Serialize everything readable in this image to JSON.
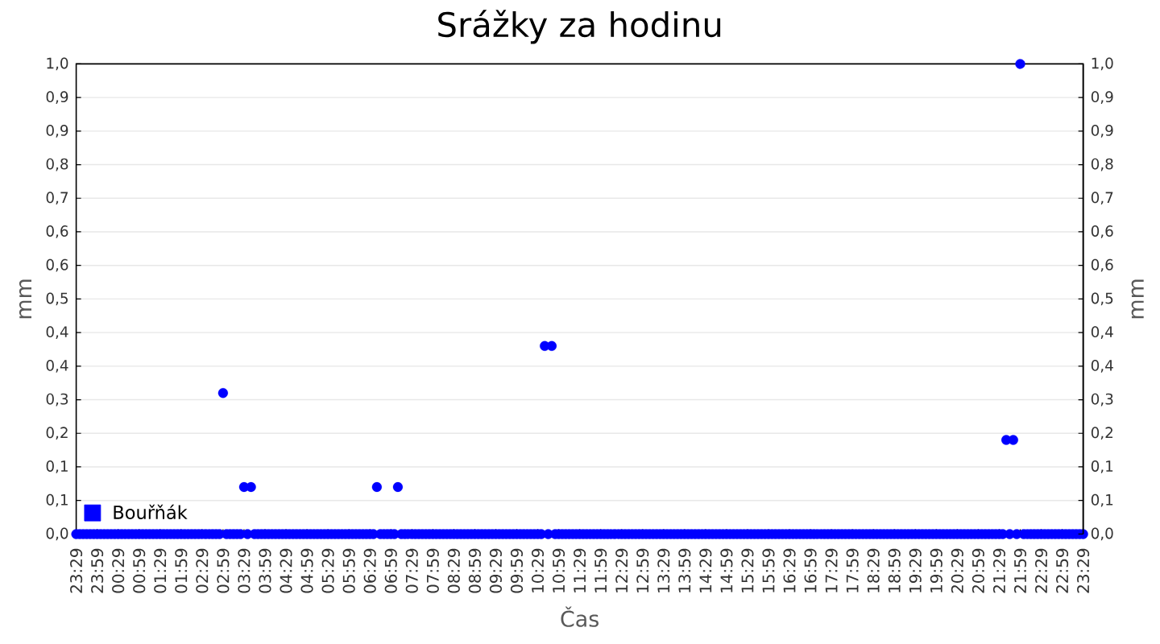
{
  "chart_data": {
    "type": "scatter",
    "title": "Srážky za hodinu",
    "xlabel": "Čas",
    "ylabel": "mm",
    "y2label": "mm",
    "categories": [
      "23:29",
      null,
      null,
      null,
      null,
      null,
      "23:59",
      null,
      null,
      null,
      null,
      null,
      "00:29",
      null,
      null,
      null,
      null,
      null,
      "00:59",
      null,
      null,
      null,
      null,
      null,
      "01:29",
      null,
      null,
      null,
      null,
      null,
      "01:59",
      null,
      null,
      null,
      null,
      null,
      "02:29",
      null,
      null,
      null,
      null,
      null,
      "02:59",
      null,
      null,
      null,
      null,
      null,
      "03:29",
      null,
      null,
      null,
      null,
      null,
      "03:59",
      null,
      null,
      null,
      null,
      null,
      "04:29",
      null,
      null,
      null,
      null,
      null,
      "04:59",
      null,
      null,
      null,
      null,
      null,
      "05:29",
      null,
      null,
      null,
      null,
      null,
      "05:59",
      null,
      null,
      null,
      null,
      null,
      "06:29",
      null,
      null,
      null,
      null,
      null,
      "06:59",
      null,
      null,
      null,
      null,
      null,
      "07:29",
      null,
      null,
      null,
      null,
      null,
      "07:59",
      null,
      null,
      null,
      null,
      null,
      "08:29",
      null,
      null,
      null,
      null,
      null,
      "08:59",
      null,
      null,
      null,
      null,
      null,
      "09:29",
      null,
      null,
      null,
      null,
      null,
      "09:59",
      null,
      null,
      null,
      null,
      null,
      "10:29",
      null,
      null,
      null,
      null,
      null,
      "10:59",
      null,
      null,
      null,
      null,
      null,
      "11:29",
      null,
      null,
      null,
      null,
      null,
      "11:59",
      null,
      null,
      null,
      null,
      null,
      "12:29",
      null,
      null,
      null,
      null,
      null,
      "12:59",
      null,
      null,
      null,
      null,
      null,
      "13:29",
      null,
      null,
      null,
      null,
      null,
      "13:59",
      null,
      null,
      null,
      null,
      null,
      "14:29",
      null,
      null,
      null,
      null,
      null,
      "14:59",
      null,
      null,
      null,
      null,
      null,
      "15:29",
      null,
      null,
      null,
      null,
      null,
      "15:59",
      null,
      null,
      null,
      null,
      null,
      "16:29",
      null,
      null,
      null,
      null,
      null,
      "16:59",
      null,
      null,
      null,
      null,
      null,
      "17:29",
      null,
      null,
      null,
      null,
      null,
      "17:59",
      null,
      null,
      null,
      null,
      null,
      "18:29",
      null,
      null,
      null,
      null,
      null,
      "18:59",
      null,
      null,
      null,
      null,
      null,
      "19:29",
      null,
      null,
      null,
      null,
      null,
      "19:59",
      null,
      null,
      null,
      null,
      null,
      "20:29",
      null,
      null,
      null,
      null,
      null,
      "20:59",
      null,
      null,
      null,
      null,
      null,
      "21:29",
      null,
      null,
      null,
      null,
      null,
      "21:59",
      null,
      null,
      null,
      null,
      null,
      "22:29",
      null,
      null,
      null,
      null,
      null,
      "22:59",
      null,
      null,
      null,
      null,
      null,
      "23:29"
    ],
    "series": [
      {
        "name": "Bouřňák",
        "color": "#0000ff",
        "values": [
          0,
          0,
          0,
          0,
          0,
          0,
          0,
          0,
          0,
          0,
          0,
          0,
          0,
          0,
          0,
          0,
          0,
          0,
          0,
          0,
          0,
          0,
          0,
          0,
          0,
          0,
          0,
          0,
          0,
          0,
          0,
          0,
          0,
          0,
          0,
          0,
          0,
          0,
          0,
          0,
          0,
          0,
          0.3,
          0,
          0,
          0,
          0,
          0,
          0.1,
          0,
          0.1,
          0,
          0,
          0,
          0,
          0,
          0,
          0,
          0,
          0,
          0,
          0,
          0,
          0,
          0,
          0,
          0,
          0,
          0,
          0,
          0,
          0,
          0,
          0,
          0,
          0,
          0,
          0,
          0,
          0,
          0,
          0,
          0,
          0,
          0,
          0,
          0.1,
          0,
          0,
          0,
          0,
          0,
          0.1,
          0,
          0,
          0,
          0,
          0,
          0,
          0,
          0,
          0,
          0,
          0,
          0,
          0,
          0,
          0,
          0,
          0,
          0,
          0,
          0,
          0,
          0,
          0,
          0,
          0,
          0,
          0,
          0,
          0,
          0,
          0,
          0,
          0,
          0,
          0,
          0,
          0,
          0,
          0,
          0,
          0,
          0.4,
          0,
          0.4,
          0,
          0,
          0,
          0,
          0,
          0,
          0,
          0,
          0,
          0,
          0,
          0,
          0,
          0,
          0,
          0,
          0,
          0,
          0,
          0,
          0,
          0,
          0,
          0,
          0,
          0,
          0,
          0,
          0,
          0,
          0,
          0,
          0,
          0,
          0,
          0,
          0,
          0,
          0,
          0,
          0,
          0,
          0,
          0,
          0,
          0,
          0,
          0,
          0,
          0,
          0,
          0,
          0,
          0,
          0,
          0,
          0,
          0,
          0,
          0,
          0,
          0,
          0,
          0,
          0,
          0,
          0,
          0,
          0,
          0,
          0,
          0,
          0,
          0,
          0,
          0,
          0,
          0,
          0,
          0,
          0,
          0,
          0,
          0,
          0,
          0,
          0,
          0,
          0,
          0,
          0,
          0,
          0,
          0,
          0,
          0,
          0,
          0,
          0,
          0,
          0,
          0,
          0,
          0,
          0,
          0,
          0,
          0,
          0,
          0,
          0,
          0,
          0,
          0,
          0,
          0,
          0,
          0,
          0,
          0,
          0,
          0,
          0,
          0,
          0,
          0,
          0,
          0,
          0,
          0.2,
          0,
          0.2,
          0,
          1,
          0,
          0,
          0,
          0,
          0,
          0,
          0,
          0,
          0,
          0,
          0,
          0,
          0,
          0,
          0,
          0,
          0,
          0
        ]
      }
    ],
    "ylim": [
      0,
      1
    ],
    "yticks": [
      {
        "value": 0,
        "label": "0,0"
      },
      {
        "value": 0.0714,
        "label": "0,1"
      },
      {
        "value": 0.1429,
        "label": "0,1"
      },
      {
        "value": 0.2143,
        "label": "0,2"
      },
      {
        "value": 0.2857,
        "label": "0,3"
      },
      {
        "value": 0.3571,
        "label": "0,4"
      },
      {
        "value": 0.4286,
        "label": "0,4"
      },
      {
        "value": 0.5,
        "label": "0,5"
      },
      {
        "value": 0.5714,
        "label": "0,6"
      },
      {
        "value": 0.6429,
        "label": "0,6"
      },
      {
        "value": 0.7143,
        "label": "0,7"
      },
      {
        "value": 0.7857,
        "label": "0,8"
      },
      {
        "value": 0.8571,
        "label": "0,9"
      },
      {
        "value": 0.9286,
        "label": "0,9"
      },
      {
        "value": 1,
        "label": "1,0"
      }
    ],
    "y2lim": [
      0,
      1
    ],
    "y2ticks": [
      {
        "value": 0,
        "label": "0,0"
      },
      {
        "value": 0.0714,
        "label": "0,1"
      },
      {
        "value": 0.1429,
        "label": "0,1"
      },
      {
        "value": 0.2143,
        "label": "0,2"
      },
      {
        "value": 0.2857,
        "label": "0,3"
      },
      {
        "value": 0.3571,
        "label": "0,4"
      },
      {
        "value": 0.4286,
        "label": "0,4"
      },
      {
        "value": 0.5,
        "label": "0,5"
      },
      {
        "value": 0.5714,
        "label": "0,6"
      },
      {
        "value": 0.6429,
        "label": "0,6"
      },
      {
        "value": 0.7143,
        "label": "0,7"
      },
      {
        "value": 0.7857,
        "label": "0,8"
      },
      {
        "value": 0.8571,
        "label": "0,9"
      },
      {
        "value": 0.9286,
        "label": "0,9"
      },
      {
        "value": 1,
        "label": "1,0"
      }
    ],
    "grid": "y",
    "legend": "bottom left",
    "marker": "circle"
  }
}
